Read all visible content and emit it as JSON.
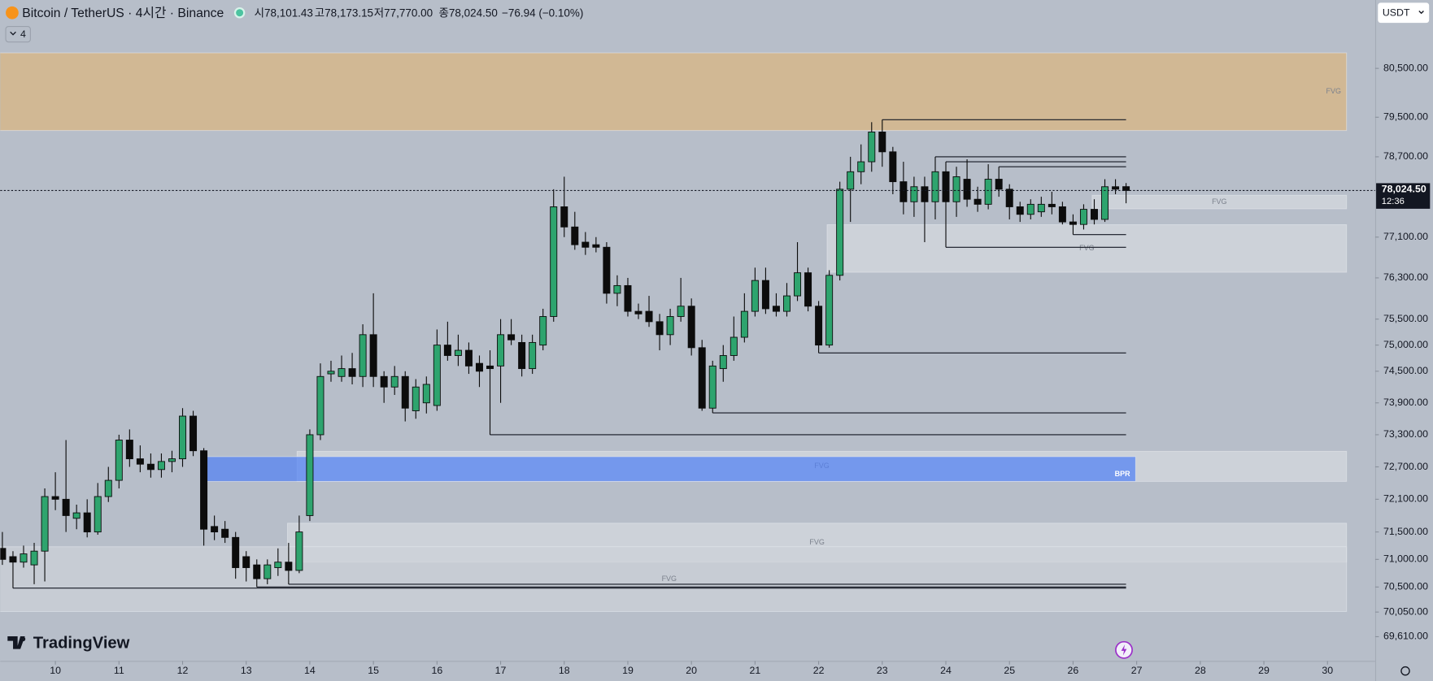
{
  "chart_data": {
    "type": "candlestick",
    "title": "Bitcoin / TetherUS · 4시간 · Binance",
    "ohlc_labels": [
      "시78,101.43",
      "고78,173.15",
      "저77,770.00",
      "종78,024.50",
      "−76.94 (−0.10%)"
    ],
    "indicator_count": "4",
    "currency": "USDT",
    "brand": "TradingView",
    "last_price_label": "78,024.50",
    "countdown": "12:36",
    "log": true,
    "up_color": "#2ea46e",
    "down_color": "#0c0c0c",
    "open": [
      71200,
      71050,
      70950,
      70900,
      71150,
      72150,
      72100,
      71750,
      71850,
      71500,
      72150,
      72450,
      73200,
      72850,
      72750,
      72650,
      72800,
      72850,
      73650,
      73000,
      71600,
      71550,
      71400,
      71050,
      70900,
      70650,
      70850,
      70950,
      70800,
      71800,
      73300,
      74450,
      74400,
      74550,
      74400,
      75200,
      74400,
      74200,
      74400,
      73750,
      73900,
      73850,
      75000,
      74800,
      74900,
      74650,
      74600,
      74600,
      75200,
      75050,
      74550,
      75000,
      75550,
      77700,
      77300,
      77000,
      76950,
      76900,
      76000,
      76150,
      75650,
      75650,
      75450,
      75200,
      75550,
      75750,
      74950,
      73800,
      74550,
      74800,
      75150,
      75650,
      76250,
      75750,
      75650,
      75950,
      76400,
      75750,
      75000,
      76350,
      78050,
      78400,
      78600,
      79200,
      78800,
      78200,
      77800,
      78100,
      77800,
      78400,
      77800,
      78250,
      77850,
      77750,
      78250,
      78050,
      77700,
      77550,
      77600,
      77750,
      77700,
      77400,
      77350,
      77650,
      77450,
      78100,
      78101.43
    ],
    "high": [
      71500,
      71150,
      71250,
      71300,
      72300,
      72600,
      73200,
      72000,
      72100,
      72400,
      72700,
      73300,
      73400,
      73100,
      72950,
      72950,
      73000,
      73800,
      73750,
      73050,
      71800,
      71700,
      71500,
      71150,
      71000,
      71000,
      71200,
      71300,
      71800,
      73400,
      74650,
      74700,
      74800,
      74850,
      75400,
      76000,
      74500,
      74600,
      74500,
      74350,
      74400,
      75300,
      75450,
      75200,
      75050,
      74800,
      74900,
      75500,
      75500,
      75200,
      75200,
      75700,
      78050,
      78300,
      77600,
      77200,
      77100,
      77000,
      76350,
      76300,
      75800,
      75950,
      75600,
      75700,
      76300,
      75900,
      75100,
      74700,
      75000,
      75550,
      76000,
      76500,
      76500,
      76000,
      76200,
      77000,
      76500,
      75850,
      76450,
      78200,
      78700,
      78950,
      79400,
      79450,
      78900,
      78600,
      78300,
      78300,
      78700,
      78600,
      78500,
      78650,
      78100,
      78550,
      78500,
      78150,
      77800,
      77850,
      77900,
      78000,
      77800,
      77550,
      77750,
      77850,
      78250,
      78250,
      78173.15
    ],
    "low": [
      70900,
      70480,
      70850,
      70550,
      70600,
      71900,
      71500,
      71550,
      71400,
      71450,
      72050,
      72300,
      72700,
      72600,
      72500,
      72500,
      72600,
      72700,
      72900,
      71250,
      71350,
      71300,
      70650,
      70600,
      70500,
      70550,
      70700,
      70550,
      70750,
      71700,
      73200,
      74300,
      74300,
      74250,
      74200,
      74200,
      73900,
      74050,
      73550,
      73600,
      73700,
      73750,
      74700,
      74600,
      74450,
      74200,
      73300,
      73900,
      75000,
      74400,
      74450,
      74900,
      75450,
      77100,
      76850,
      76750,
      76800,
      75800,
      75750,
      75550,
      75500,
      75350,
      74900,
      75000,
      75450,
      74800,
      73750,
      73710,
      74300,
      74700,
      75050,
      75550,
      75600,
      75550,
      75550,
      75850,
      75650,
      74850,
      74950,
      76250,
      77400,
      78150,
      78400,
      78500,
      77950,
      77550,
      77500,
      77000,
      77450,
      76900,
      77500,
      77700,
      77600,
      77650,
      77900,
      77450,
      77400,
      77450,
      77500,
      77550,
      77350,
      77150,
      77250,
      77350,
      77400,
      77950,
      77770
    ],
    "close": [
      71000,
      70950,
      71100,
      71150,
      72150,
      72100,
      71800,
      71850,
      71500,
      72150,
      72450,
      73200,
      72850,
      72750,
      72650,
      72800,
      72850,
      73650,
      73000,
      71550,
      71500,
      71400,
      70850,
      70850,
      70650,
      70900,
      70950,
      70800,
      71500,
      73300,
      74400,
      74500,
      74550,
      74400,
      75200,
      74400,
      74200,
      74400,
      73800,
      74200,
      74250,
      75000,
      74800,
      74900,
      74600,
      74500,
      74550,
      75200,
      75100,
      74550,
      75050,
      75550,
      77700,
      77300,
      76950,
      76900,
      76900,
      76000,
      76150,
      75650,
      75600,
      75450,
      75200,
      75550,
      75750,
      74950,
      73800,
      74600,
      74800,
      75150,
      75650,
      76250,
      75700,
      75650,
      75950,
      76400,
      75750,
      75000,
      76350,
      78050,
      78400,
      78600,
      79200,
      78800,
      78200,
      77800,
      78100,
      77800,
      78400,
      77800,
      78300,
      77850,
      77750,
      78250,
      78050,
      77700,
      77550,
      77750,
      77750,
      77700,
      77400,
      77350,
      77650,
      77450,
      78100,
      78050,
      78024.5
    ],
    "xlim": [
      -0.2,
      129.5
    ],
    "xticks": [
      {
        "value": 5,
        "label": "10"
      },
      {
        "value": 11,
        "label": "11"
      },
      {
        "value": 17,
        "label": "12"
      },
      {
        "value": 23,
        "label": "13"
      },
      {
        "value": 29,
        "label": "14"
      },
      {
        "value": 35,
        "label": "15"
      },
      {
        "value": 41,
        "label": "16"
      },
      {
        "value": 47,
        "label": "17"
      },
      {
        "value": 53,
        "label": "18"
      },
      {
        "value": 59,
        "label": "19"
      },
      {
        "value": 65,
        "label": "20"
      },
      {
        "value": 71,
        "label": "21"
      },
      {
        "value": 77,
        "label": "22"
      },
      {
        "value": 83,
        "label": "23"
      },
      {
        "value": 89,
        "label": "24"
      },
      {
        "value": 95,
        "label": "25"
      },
      {
        "value": 101,
        "label": "26"
      },
      {
        "value": 107,
        "label": "27"
      },
      {
        "value": 113,
        "label": "28"
      },
      {
        "value": 119,
        "label": "29"
      },
      {
        "value": 125,
        "label": "30"
      }
    ],
    "ylim": [
      69180,
      81920
    ],
    "yticks": [
      {
        "value": 80500,
        "label": "80,500.00"
      },
      {
        "value": 79500,
        "label": "79,500.00"
      },
      {
        "value": 78700,
        "label": "78,700.00"
      },
      {
        "value": 77100,
        "label": "77,100.00"
      },
      {
        "value": 76300,
        "label": "76,300.00"
      },
      {
        "value": 75500,
        "label": "75,500.00"
      },
      {
        "value": 75000,
        "label": "75,000.00"
      },
      {
        "value": 74500,
        "label": "74,500.00"
      },
      {
        "value": 73900,
        "label": "73,900.00"
      },
      {
        "value": 73300,
        "label": "73,300.00"
      },
      {
        "value": 72700,
        "label": "72,700.00"
      },
      {
        "value": 72100,
        "label": "72,100.00"
      },
      {
        "value": 71500,
        "label": "71,500.00"
      },
      {
        "value": 71000,
        "label": "71,000.00"
      },
      {
        "value": 70500,
        "label": "70,500.00"
      },
      {
        "value": 70050,
        "label": "70,050.00"
      },
      {
        "value": 69610,
        "label": "69,610.00"
      }
    ],
    "zones": [
      {
        "high": 80820,
        "low": 79230,
        "from": -1,
        "to": 126.8,
        "color": "#dcb57e",
        "label": "FVG",
        "label_align": "right"
      },
      {
        "high": 77930,
        "low": 77660,
        "from": 102.8,
        "to": 126.8,
        "color": "#d6dae0",
        "label": "FVG"
      },
      {
        "high": 77345,
        "low": 76410,
        "from": 77.8,
        "to": 126.8,
        "color": "#d6dae0",
        "label": "FVG"
      },
      {
        "high": 72990,
        "low": 72430,
        "from": 27.8,
        "to": 126.8,
        "color": "#d6dae0",
        "label": "FVG"
      },
      {
        "high": 72890,
        "low": 72430,
        "from": 19.2,
        "to": 106.9,
        "color": "#4f7ff5",
        "label": "BPR",
        "label_align": "right"
      },
      {
        "high": 71660,
        "low": 70950,
        "from": 26.9,
        "to": 126.8,
        "color": "#d6dae0",
        "label": "FVG"
      },
      {
        "high": 71230,
        "low": 70060,
        "from": -1,
        "to": 126.8,
        "color": "#cdd1d8",
        "label": "FVG"
      }
    ],
    "levels": [
      {
        "candle": 83,
        "at": "high"
      },
      {
        "candle": 88,
        "at": "high"
      },
      {
        "candle": 89,
        "at": "high"
      },
      {
        "candle": 94,
        "at": "high"
      },
      {
        "candle": 101,
        "at": "low"
      },
      {
        "candle": 89,
        "at": "low"
      },
      {
        "candle": 77,
        "at": "low"
      },
      {
        "candle": 67,
        "at": "low"
      },
      {
        "candle": 46,
        "at": "low"
      },
      {
        "candle": 27,
        "at": "low"
      },
      {
        "candle": 24,
        "at": "low"
      },
      {
        "candle": 1,
        "at": "low"
      }
    ]
  }
}
